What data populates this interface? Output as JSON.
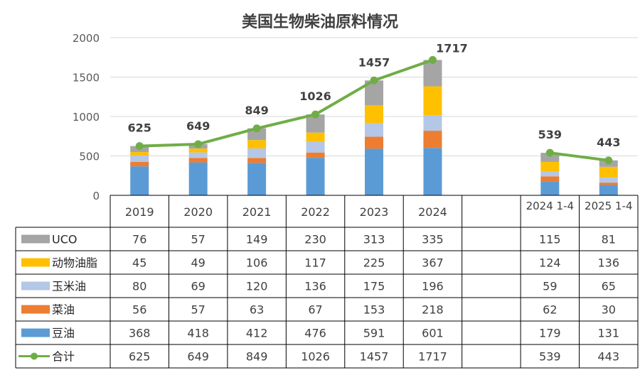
{
  "chart_data": {
    "type": "bar",
    "title": "美国生物柴油原料情况",
    "categories": [
      "2019",
      "2020",
      "2021",
      "2022",
      "2023",
      "2024",
      "",
      "2024 1-4",
      "2025 1-4"
    ],
    "ylim": [
      0,
      2000
    ],
    "yticks": [
      "0",
      "500",
      "1000",
      "1500",
      "2000"
    ],
    "grid": true,
    "legend_position": "table-left",
    "series": [
      {
        "name": "豆油",
        "kind": "bar",
        "color": "#5b9bd5",
        "values": [
          368,
          418,
          412,
          476,
          591,
          601,
          null,
          179,
          131
        ]
      },
      {
        "name": "菜油",
        "kind": "bar",
        "color": "#ed7d31",
        "values": [
          56,
          57,
          63,
          67,
          153,
          218,
          null,
          62,
          30
        ]
      },
      {
        "name": "玉米油",
        "kind": "bar",
        "color": "#b4c7e7",
        "values": [
          80,
          69,
          120,
          136,
          175,
          196,
          null,
          59,
          65
        ]
      },
      {
        "name": "动物油脂",
        "kind": "bar",
        "color": "#ffc000",
        "values": [
          45,
          49,
          106,
          117,
          225,
          367,
          null,
          124,
          136
        ]
      },
      {
        "name": "UCO",
        "kind": "bar",
        "color": "#a5a5a5",
        "values": [
          76,
          57,
          149,
          230,
          313,
          335,
          null,
          115,
          81
        ]
      },
      {
        "name": "合计",
        "kind": "line",
        "color": "#70ad47",
        "values": [
          625,
          649,
          849,
          1026,
          1457,
          1717,
          null,
          539,
          443
        ]
      }
    ],
    "table_row_order": [
      "UCO",
      "动物油脂",
      "玉米油",
      "菜油",
      "豆油",
      "合计"
    ],
    "total_labels": [
      "625",
      "649",
      "849",
      "1026",
      "1457",
      "1717",
      "",
      "539",
      "443"
    ]
  }
}
